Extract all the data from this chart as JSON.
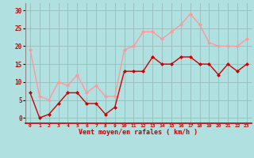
{
  "x": [
    0,
    1,
    2,
    3,
    4,
    5,
    6,
    7,
    8,
    9,
    10,
    11,
    12,
    13,
    14,
    15,
    16,
    17,
    18,
    19,
    20,
    21,
    22,
    23
  ],
  "vent_moyen": [
    7,
    0,
    1,
    4,
    7,
    7,
    4,
    4,
    1,
    3,
    13,
    13,
    13,
    17,
    15,
    15,
    17,
    17,
    15,
    15,
    12,
    15,
    13,
    15
  ],
  "rafales": [
    19,
    6,
    5,
    10,
    9,
    12,
    7,
    9,
    6,
    6,
    19,
    20,
    24,
    24,
    22,
    24,
    26,
    29,
    26,
    21,
    20,
    20,
    20,
    22
  ],
  "color_moyen": "#cc0000",
  "color_rafales": "#ff9999",
  "bg_color": "#b0e0e0",
  "grid_color": "#99bbbb",
  "xlabel": "Vent moyen/en rafales ( km/h )",
  "ylabel_ticks": [
    0,
    5,
    10,
    15,
    20,
    25,
    30
  ],
  "ylim": [
    -1.5,
    32
  ],
  "xlim": [
    -0.5,
    23.5
  ],
  "markersize": 2.5,
  "linewidth": 1.0
}
